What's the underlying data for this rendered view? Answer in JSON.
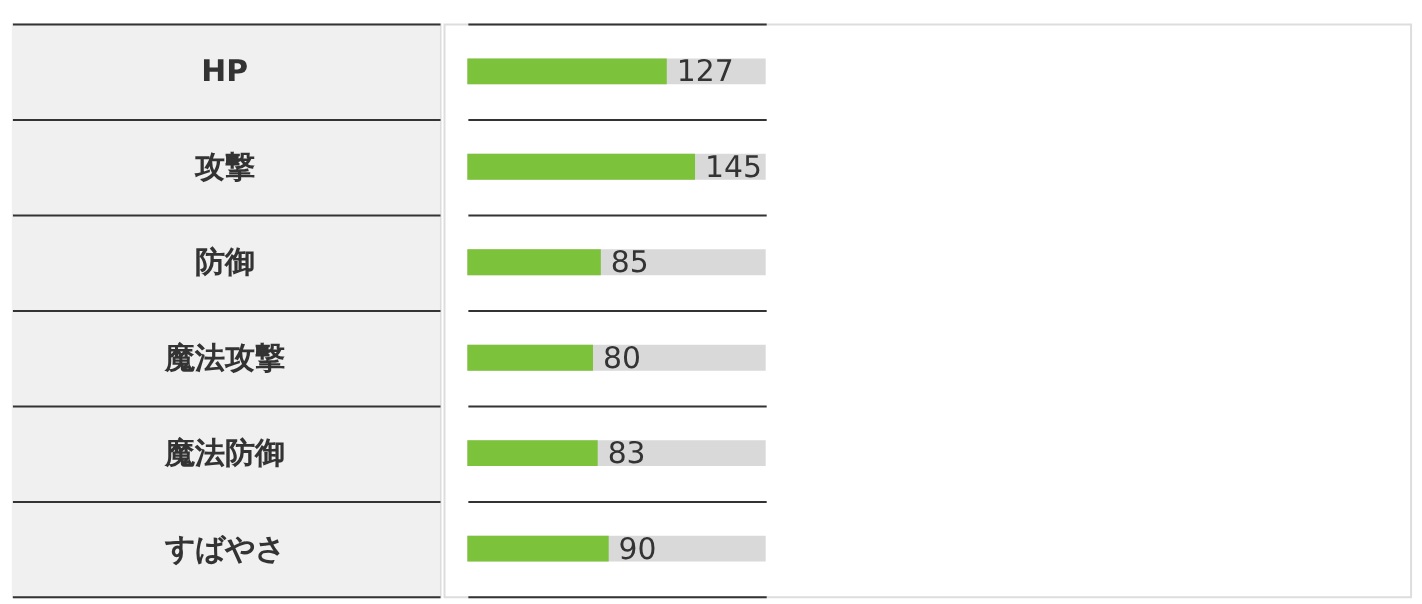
{
  "chart_data": {
    "type": "bar",
    "orientation": "horizontal",
    "categories": [
      "HP",
      "攻撃",
      "防御",
      "魔法攻撃",
      "魔法防御",
      "すばやさ"
    ],
    "values": [
      127,
      145,
      85,
      80,
      83,
      90
    ],
    "color": "#7cc23a",
    "xlim": [
      0,
      190
    ],
    "data_labels": true,
    "tick_labels": false,
    "grid": "y"
  }
}
